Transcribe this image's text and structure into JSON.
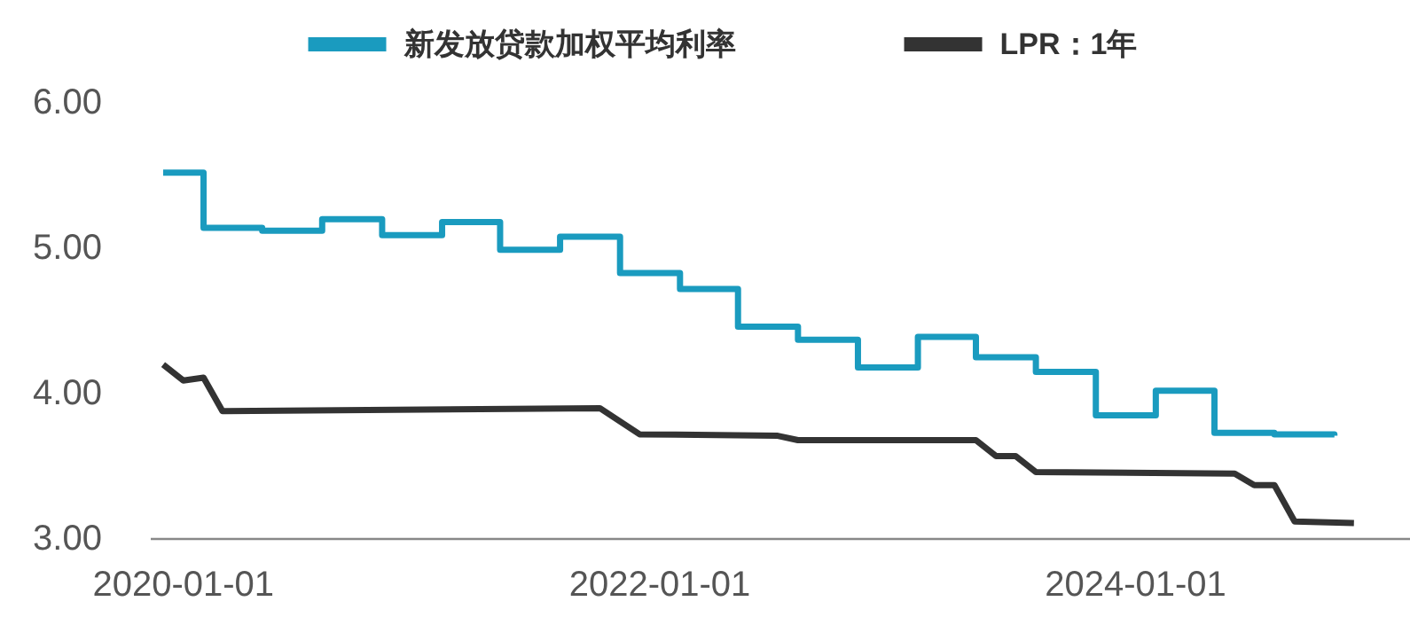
{
  "chart_data": {
    "type": "line",
    "legend": "top",
    "xlim": [
      "2019-11-12",
      "2025-02-25"
    ],
    "ylim": [
      3,
      6
    ],
    "xticks": [
      "2020-01-01",
      "2022-01-01",
      "2024-01-01"
    ],
    "yticks": [
      {
        "value": 3,
        "label": "3.00"
      },
      {
        "value": 4,
        "label": "4.00"
      },
      {
        "value": 5,
        "label": "5.00"
      },
      {
        "value": 6,
        "label": "6.00"
      }
    ],
    "series": [
      {
        "name": "新发放贷款加权平均利率",
        "type": "step",
        "color": "#1a9bbf",
        "x": [
          "2019-12",
          "2020-02",
          "2020-05",
          "2020-08",
          "2020-11",
          "2021-02",
          "2021-05",
          "2021-08",
          "2021-11",
          "2022-02",
          "2022-05",
          "2022-08",
          "2022-11",
          "2023-02",
          "2023-05",
          "2023-08",
          "2023-11",
          "2024-02",
          "2024-05",
          "2024-08",
          "2024-11"
        ],
        "values": [
          5.52,
          5.14,
          5.12,
          5.2,
          5.09,
          5.18,
          4.99,
          5.08,
          4.83,
          4.72,
          4.46,
          4.37,
          4.18,
          4.39,
          4.25,
          4.15,
          3.85,
          4.02,
          3.73,
          3.72,
          3.71
        ]
      },
      {
        "name": "LPR：1年",
        "color": "#333333",
        "x": [
          "2019-12",
          "2020-01",
          "2020-02",
          "2020-03",
          "2021-10",
          "2021-12",
          "2022-07",
          "2022-08",
          "2023-05",
          "2023-06",
          "2023-07",
          "2023-08",
          "2024-06",
          "2024-07",
          "2024-08",
          "2024-09",
          "2024-12"
        ],
        "values": [
          4.2,
          4.09,
          4.11,
          3.88,
          3.9,
          3.72,
          3.71,
          3.68,
          3.68,
          3.57,
          3.57,
          3.46,
          3.45,
          3.37,
          3.37,
          3.12,
          3.11
        ]
      }
    ]
  }
}
